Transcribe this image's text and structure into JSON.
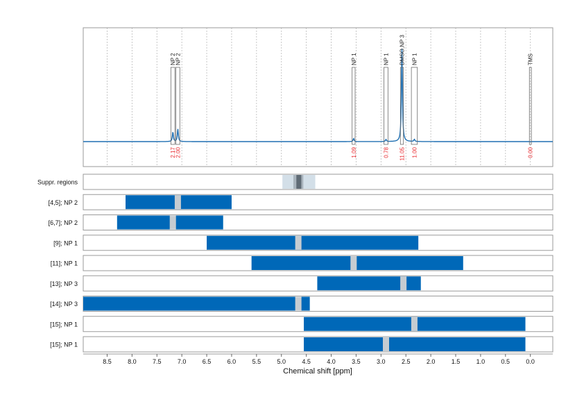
{
  "chart_data": {
    "type": "nmr-spectrum-with-range-bars",
    "x_axis": {
      "label": "Chemical shift [ppm]",
      "reversed": true,
      "range": [
        8.98,
        -0.45
      ],
      "ticks": [
        "8.5",
        "8.0",
        "7.5",
        "7.0",
        "6.5",
        "6.0",
        "5.5",
        "5.0",
        "4.5",
        "4.0",
        "3.5",
        "3.0",
        "2.5",
        "2.0",
        "1.5",
        "1.0",
        "0.5",
        "0.0"
      ],
      "tick_values": [
        8.5,
        8.0,
        7.5,
        7.0,
        6.5,
        6.0,
        5.5,
        5.0,
        4.5,
        4.0,
        3.5,
        3.0,
        2.5,
        2.0,
        1.5,
        1.0,
        0.5,
        0.0
      ]
    },
    "spectrum": {
      "grid": true,
      "baseline_color": "#1f6fb2",
      "peak_color": "#2c7fc1",
      "peaks": [
        {
          "center": 7.18,
          "height": 0.09
        },
        {
          "center": 7.08,
          "height": 0.12
        },
        {
          "center": 3.55,
          "height": 0.03
        },
        {
          "center": 2.9,
          "height": 0.02
        },
        {
          "center": 2.58,
          "height": 0.88
        },
        {
          "center": 2.33,
          "height": 0.02
        }
      ],
      "annotation_boxes": [
        {
          "label": "NP 2",
          "integral": "2.17",
          "from": 7.22,
          "to": 7.14
        },
        {
          "label": "NP 2",
          "integral": "2.00",
          "from": 7.12,
          "to": 7.04
        },
        {
          "label": "NP 1",
          "integral": "1.09",
          "from": 3.58,
          "to": 3.52
        },
        {
          "label": "NP 1",
          "integral": "0.78",
          "from": 2.94,
          "to": 2.86
        },
        {
          "label": "DMSO,NP 3",
          "integral": "11.05",
          "from": 2.61,
          "to": 2.55
        },
        {
          "label": "NP 1",
          "integral": "1.00",
          "from": 2.39,
          "to": 2.27
        },
        {
          "label": "TMS",
          "integral": "0.00",
          "from": 0.02,
          "to": -0.02
        }
      ],
      "integral_color": "#e8262b"
    },
    "suppressed_regions": {
      "label": "Suppr. regions",
      "outer": [
        4.98,
        4.32
      ],
      "inner": [
        4.76,
        4.56
      ],
      "core": [
        4.7,
        4.6
      ]
    },
    "ranges": [
      {
        "label": "[4,5]; NP 2",
        "from": 8.13,
        "to": 6.0,
        "gap": 7.08
      },
      {
        "label": "[6,7]; NP 2",
        "from": 8.3,
        "to": 6.17,
        "gap": 7.18
      },
      {
        "label": "[9]; NP 1",
        "from": 6.5,
        "to": 2.25,
        "gap": 4.66
      },
      {
        "label": "[11]; NP 1",
        "from": 5.6,
        "to": 1.35,
        "gap": 3.55
      },
      {
        "label": "[13]; NP 3",
        "from": 4.28,
        "to": 2.2,
        "gap": 2.55
      },
      {
        "label": "[14]; NP 3",
        "from": 8.98,
        "to": 4.43,
        "gap": 4.66
      },
      {
        "label": "[15]; NP 1",
        "from": 4.55,
        "to": 0.1,
        "gap": 2.33
      },
      {
        "label": "[15]; NP 1",
        "from": 4.55,
        "to": 0.1,
        "gap": 2.9
      }
    ],
    "bar_color": "#0068b8",
    "gap_color": "#c6ccd1"
  }
}
